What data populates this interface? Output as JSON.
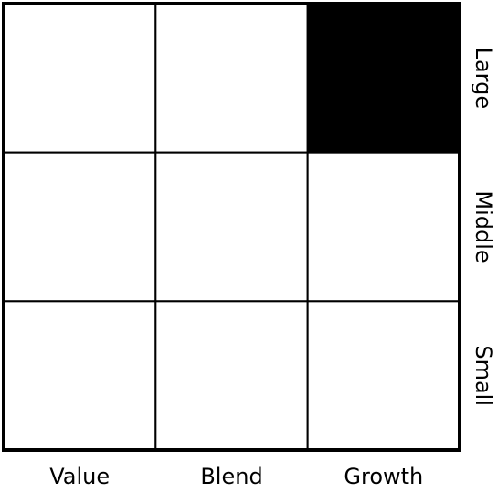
{
  "columns": [
    "Value",
    "Blend",
    "Growth"
  ],
  "rows": [
    "Large",
    "Middle",
    "Small"
  ],
  "cells": [
    [
      false,
      false,
      true
    ],
    [
      false,
      false,
      false
    ],
    [
      false,
      false,
      false
    ]
  ]
}
